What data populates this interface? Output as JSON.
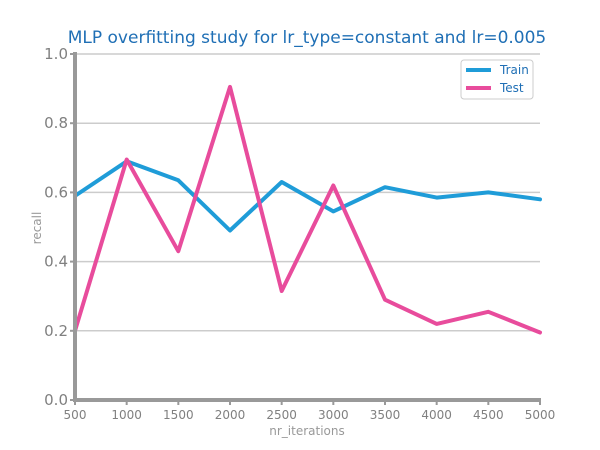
{
  "chart_data": {
    "type": "line",
    "title": "MLP overfitting study for lr_type=constant and lr=0.005",
    "xlabel": "nr_iterations",
    "ylabel": "recall",
    "x": [
      500,
      1000,
      1500,
      2000,
      2500,
      3000,
      3500,
      4000,
      4500,
      5000
    ],
    "x_tick_labels": [
      "500",
      "1000",
      "1500",
      "2000",
      "2500",
      "3000",
      "3500",
      "4000",
      "4500",
      "5000"
    ],
    "y_tick_labels": [
      "0.0",
      "0.2",
      "0.4",
      "0.6",
      "0.8",
      "1.0"
    ],
    "xlim": [
      500,
      5000
    ],
    "ylim": [
      0.0,
      1.0
    ],
    "grid": "horizontal",
    "legend_position": "top-right",
    "series": [
      {
        "name": "Train",
        "color": "#1f9cd8",
        "values": [
          0.59,
          0.69,
          0.635,
          0.49,
          0.63,
          0.545,
          0.615,
          0.585,
          0.6,
          0.58
        ]
      },
      {
        "name": "Test",
        "color": "#e84c9c",
        "values": [
          0.2,
          0.695,
          0.43,
          0.905,
          0.315,
          0.62,
          0.29,
          0.22,
          0.255,
          0.195
        ]
      }
    ]
  }
}
